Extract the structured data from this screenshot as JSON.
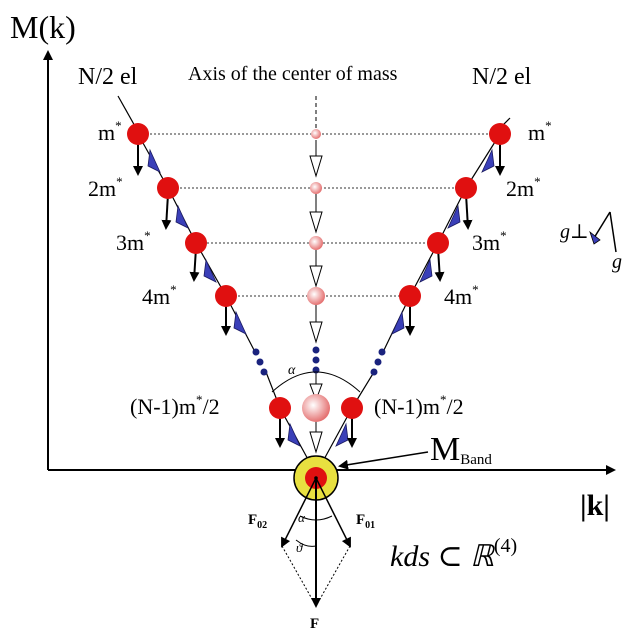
{
  "axes": {
    "y_label": "M(k)",
    "x_label": "|k|"
  },
  "center_axis_label": "Axis of the center of mass",
  "electron_groups": {
    "left": "N/2 el",
    "right": "N/2 el"
  },
  "mass_labels": {
    "m1": "m*",
    "m2": "2m*",
    "m3": "3m*",
    "m4": "4m*",
    "mlast": "(N-1)m*/2"
  },
  "angles": {
    "alpha": "α",
    "theta": "ϑ"
  },
  "band": {
    "label_main": "M",
    "label_sub": "Band"
  },
  "forces": {
    "f01": "F01",
    "f02": "F02",
    "f": "F"
  },
  "space_label": "kds ⊂ ℝ(4)",
  "gravity_labels": {
    "g_perp": "g⊥",
    "g": "g"
  },
  "colors": {
    "particle": "#e01010",
    "center_particle": "#f4a0a0",
    "blue_arrow": "#3a3fb8",
    "dot_chain": "#1a237e",
    "band_ring": "#e8e040",
    "axis": "#000000"
  }
}
